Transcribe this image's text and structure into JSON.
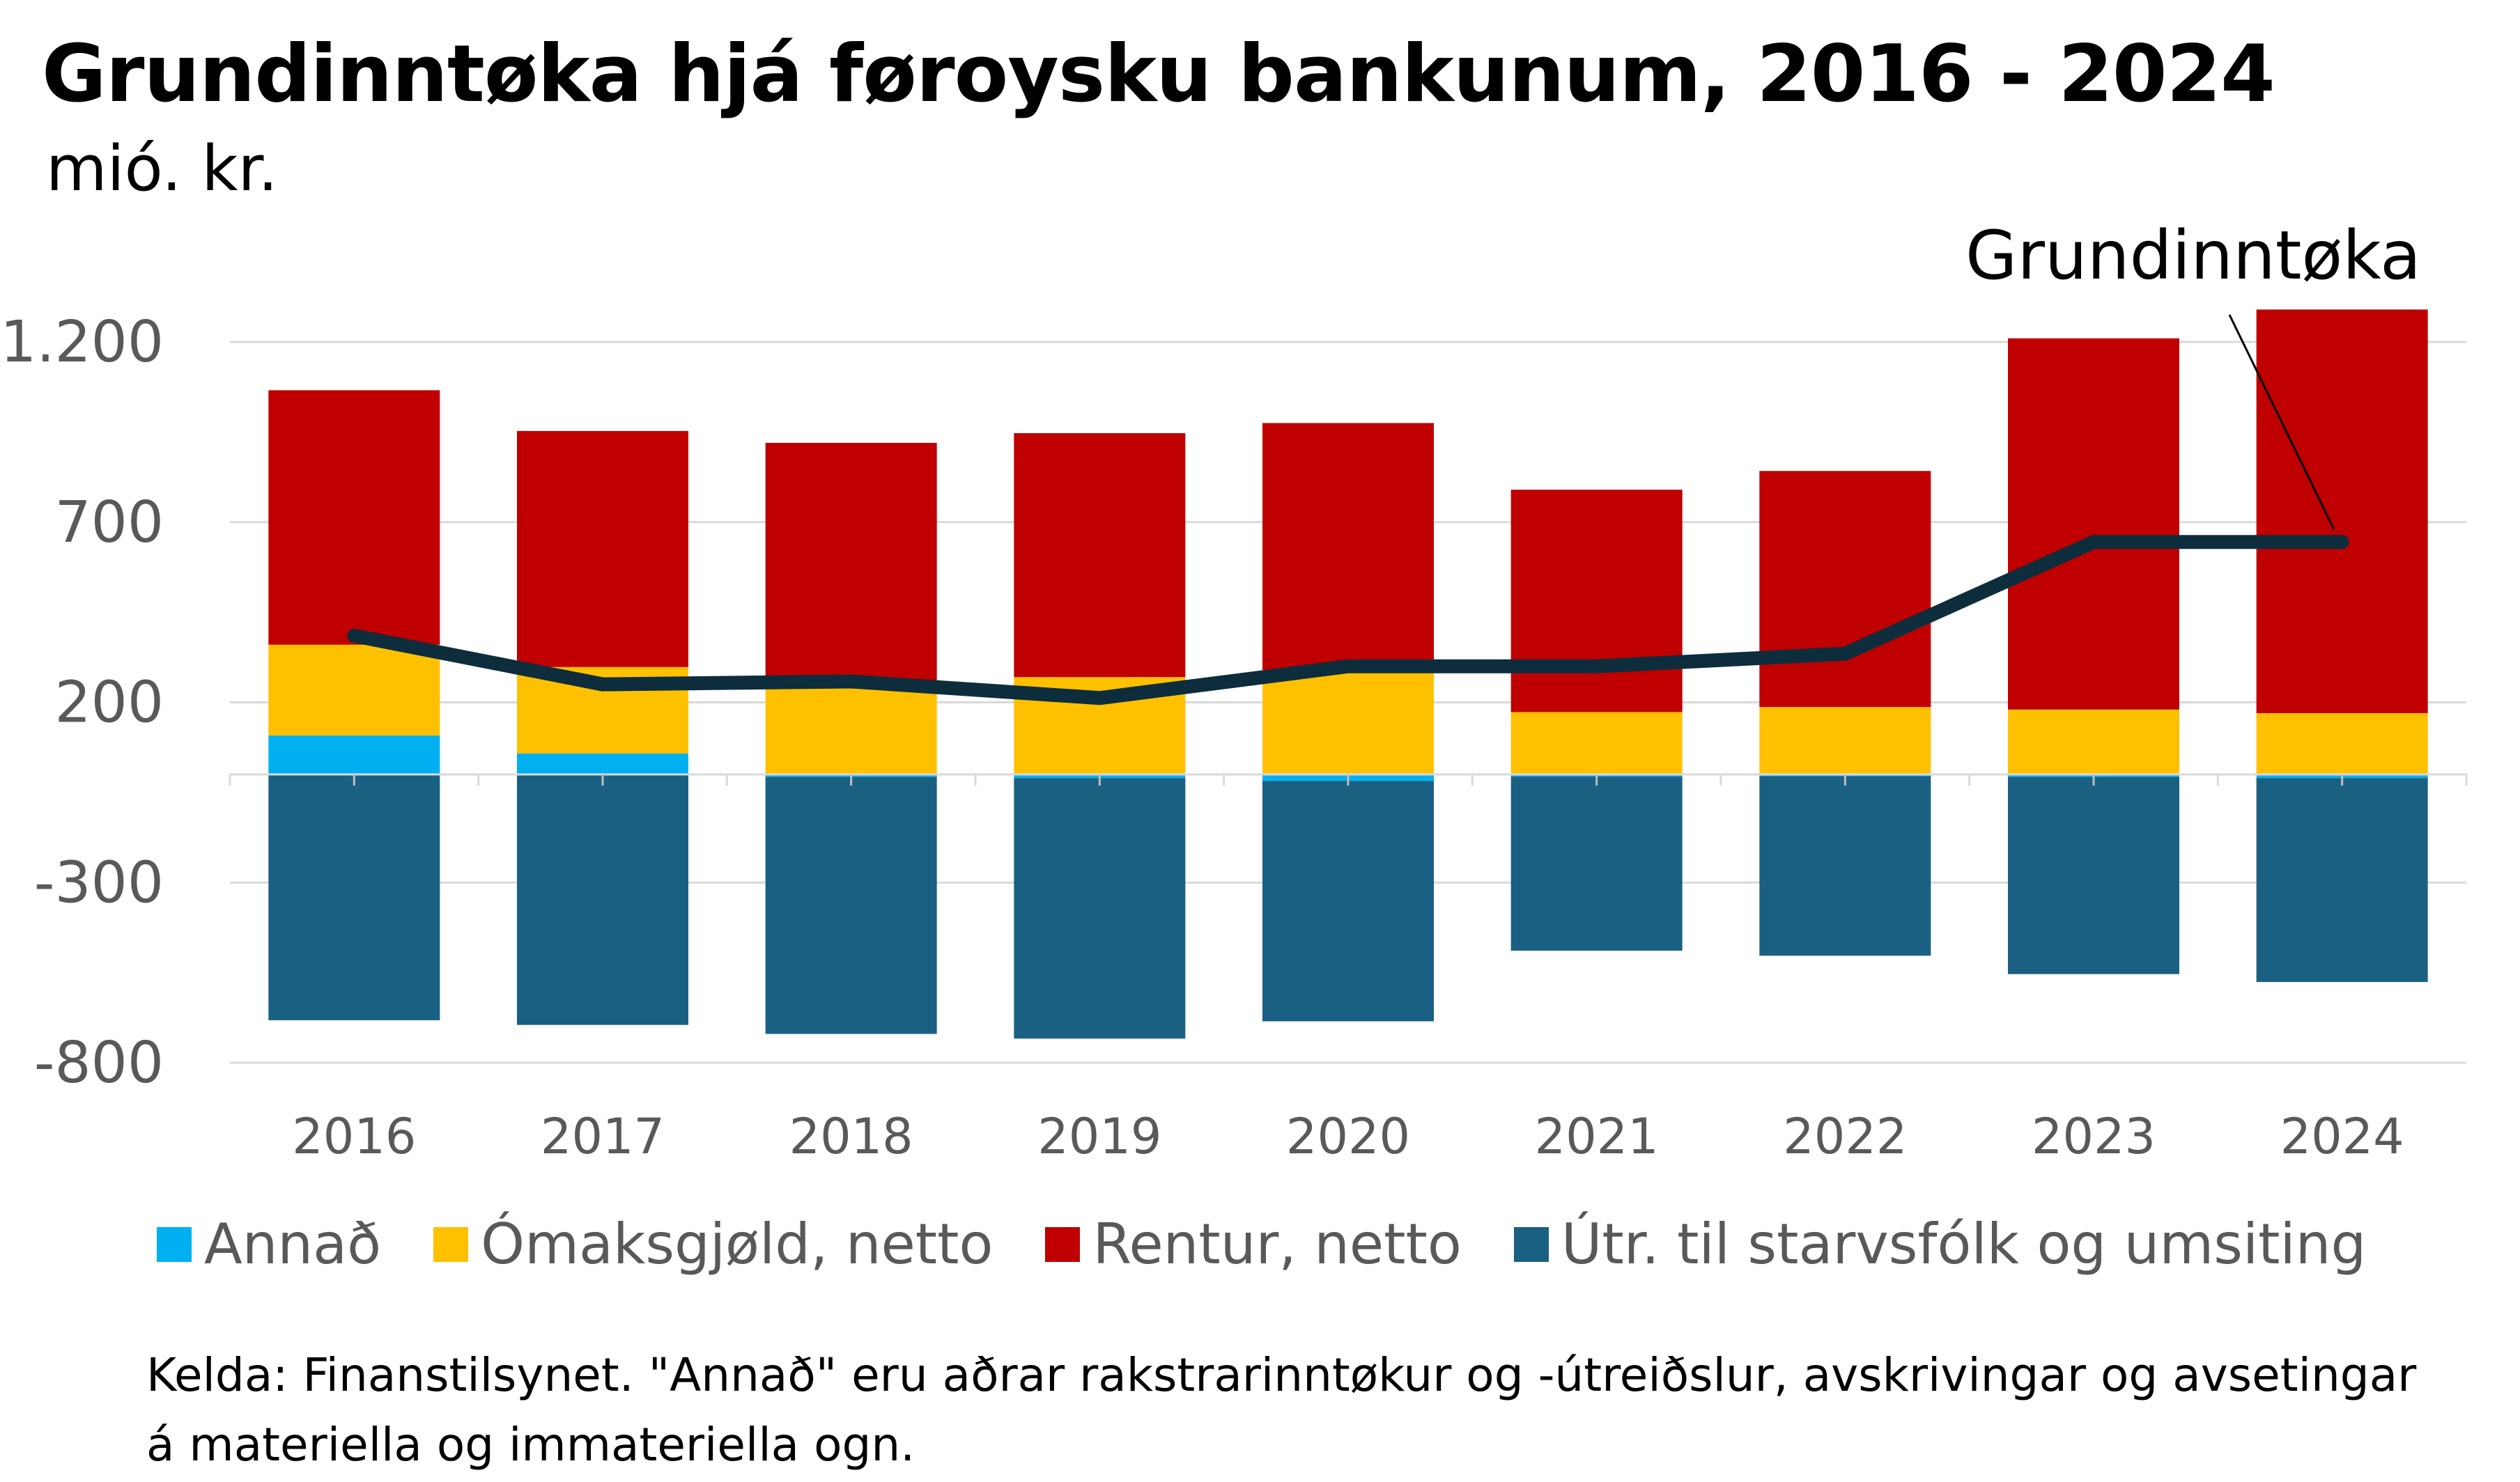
{
  "chart_data": {
    "type": "bar",
    "stacked": true,
    "title": "Grundinntøka hjá føroysku bankunum, 2016 - 2024",
    "subtitle": "mió. kr.",
    "categories": [
      "2016",
      "2017",
      "2018",
      "2019",
      "2020",
      "2021",
      "2022",
      "2023",
      "2024"
    ],
    "ylim": [
      -800,
      1300
    ],
    "yticks": [
      1200,
      700,
      200,
      -300,
      -800
    ],
    "ytick_labels": [
      "1.200",
      "700",
      "200",
      "-300",
      "-800"
    ],
    "grid": true,
    "legend_position": "bottom",
    "series": [
      {
        "name": "Annað",
        "color": "#00B0F0",
        "values": [
          108,
          58,
          -7,
          -10,
          -18,
          -6,
          -5,
          -7,
          -10
        ]
      },
      {
        "name": "Ómaksgjøld, netto",
        "color": "#FFC000",
        "values": [
          252,
          240,
          240,
          270,
          290,
          173,
          187,
          180,
          170
        ]
      },
      {
        "name": "Rentur, netto",
        "color": "#C00000",
        "values": [
          706,
          655,
          680,
          677,
          685,
          617,
          655,
          1030,
          1120
        ]
      },
      {
        "name": "Útr. til starvsfólk og umsiting",
        "color": "#1A6083",
        "values": [
          -682,
          -695,
          -713,
          -723,
          -667,
          -483,
          -498,
          -547,
          -566
        ]
      }
    ],
    "line_series": {
      "name": "Grundinntøka",
      "color": "#0D2D3D",
      "values": [
        385,
        250,
        258,
        212,
        300,
        300,
        335,
        645,
        645
      ]
    },
    "annotations": [
      {
        "text": "Grundinntøka",
        "points_to": "2024"
      }
    ],
    "source": "Kelda: Finanstilsynet. \"Annað\" eru aðrar rakstrarinntøkur og -útreiðslur, avskrivingar og avsetingar á materiella og immateriella ogn."
  }
}
